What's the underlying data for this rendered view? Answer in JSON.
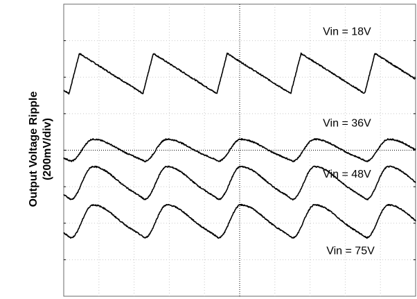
{
  "chart_data": {
    "type": "line",
    "ylabel": "Output Voltage Ripple",
    "ylabel_units": "(200mV/div)",
    "xlabel": "",
    "grid": true,
    "divisions": {
      "x": 10,
      "y": 8
    },
    "xlim": [
      0,
      10
    ],
    "ylim": [
      0,
      8
    ],
    "series": [
      {
        "name": "Vin = 18V",
        "label": "Vin = 18V",
        "shape": "triangle",
        "center": 6.1,
        "amplitude": 0.55,
        "period": 2.1,
        "phase": 0.15,
        "rise_fraction": 0.14
      },
      {
        "name": "Vin = 36V",
        "label": "Vin = 36V",
        "shape": "rounded",
        "center": 4.0,
        "amplitude": 0.3,
        "period": 2.1,
        "phase": 0.2,
        "rise_fraction": 0.3
      },
      {
        "name": "Vin = 48V",
        "label": "Vin = 48V",
        "shape": "rounded",
        "center": 3.1,
        "amplitude": 0.45,
        "period": 2.1,
        "phase": 0.2,
        "rise_fraction": 0.3
      },
      {
        "name": "Vin = 75V",
        "label": "Vin = 75V",
        "shape": "rounded",
        "center": 2.05,
        "amplitude": 0.45,
        "period": 2.1,
        "phase": 0.2,
        "rise_fraction": 0.3
      }
    ]
  }
}
